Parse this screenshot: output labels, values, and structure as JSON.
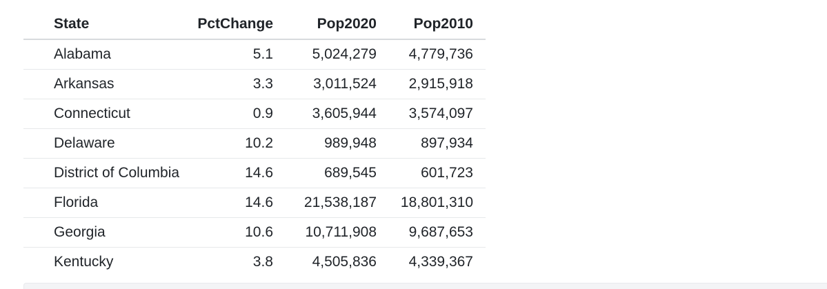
{
  "table": {
    "columns": [
      "State",
      "PctChange",
      "Pop2020",
      "Pop2010"
    ],
    "rows": [
      [
        "Alabama",
        "5.1",
        "5,024,279",
        "4,779,736"
      ],
      [
        "Arkansas",
        "3.3",
        "3,011,524",
        "2,915,918"
      ],
      [
        "Connecticut",
        "0.9",
        "3,605,944",
        "3,574,097"
      ],
      [
        "Delaware",
        "10.2",
        "989,948",
        "897,934"
      ],
      [
        "District of Columbia",
        "14.6",
        "689,545",
        "601,723"
      ],
      [
        "Florida",
        "14.6",
        "21,538,187",
        "18,801,310"
      ],
      [
        "Georgia",
        "10.6",
        "10,711,908",
        "9,687,653"
      ],
      [
        "Kentucky",
        "3.8",
        "4,505,836",
        "4,339,367"
      ]
    ]
  }
}
